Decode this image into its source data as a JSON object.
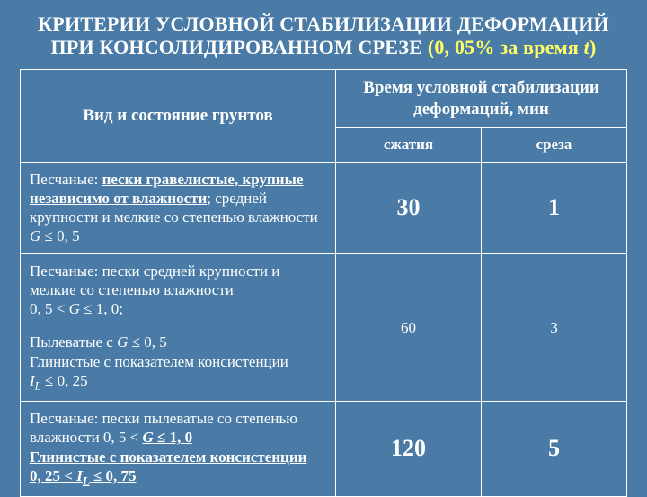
{
  "title": {
    "line1": "КРИТЕРИИ УСЛОВНОЙ СТАБИЛИЗАЦИИ ДЕФОРМАЦИЙ",
    "line2_a": "ПРИ КОНСОЛИДИРОВАННОМ СРЕЗЕ ",
    "paren_open": "(",
    "hl1": "0, 05% за время ",
    "hl_t": "t",
    "paren_close": ")"
  },
  "header": {
    "col1": "Вид и состояние грунтов",
    "col2span": "Время условной стабилизации деформаций, мин",
    "sub1": "сжатия",
    "sub2": "среза"
  },
  "rows": {
    "r1": {
      "text_a": "Песчаные: ",
      "text_b": "пески гравелистые, крупные независимо от влажности",
      "text_c": "; средней крупности и мелкие со степенью влажности  ",
      "g": "G",
      "cond": " ≤ 0, 5",
      "v1": "30",
      "v2": "1"
    },
    "r2a": {
      "text_a": "Песчаные: пески средней крупности и мелкие со степенью влажности",
      "cond_line": "0, 5 < G ≤ 1, 0;"
    },
    "r2b": {
      "text_a": "Пылеватые с ",
      "g": "G",
      "cond1": " ≤ 0, 5",
      "text_b": "Глинистые с показателем консистенции",
      "il": "I",
      "il_sub": "L",
      "cond2": " ≤ 0, 25",
      "v1": "60",
      "v2": "3"
    },
    "r3": {
      "text_a": "Песчаные: пески пылеватые со степенью влажности 0, 5 < ",
      "g": "G",
      "cond1": " ≤ 1, 0",
      "text_b": "Глинистые с показателем консистенции",
      "cond2_a": "0, 25 < ",
      "il": "I",
      "il_sub": "L",
      "cond2_b": " ≤ 0, 75",
      "v1": "120",
      "v2": "5"
    }
  }
}
